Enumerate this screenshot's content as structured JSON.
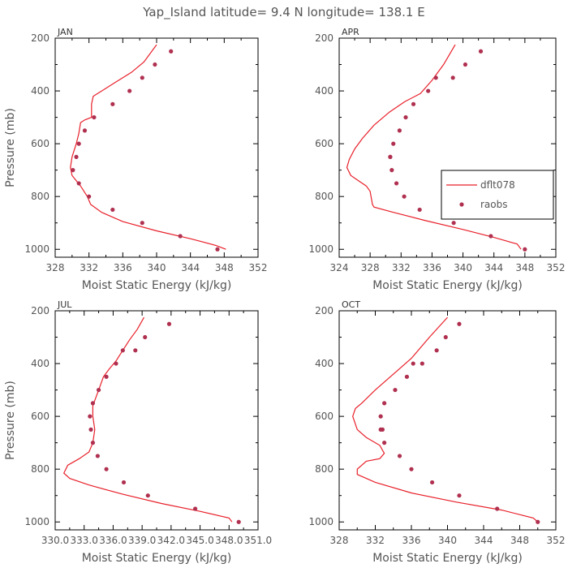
{
  "title": "Yap_Island  latitude= 9.4 N longitude= 138.1 E",
  "colors": {
    "model": "#e8202a",
    "obs": "#b03050",
    "frame": "#000000",
    "text": "#555555"
  },
  "legend": {
    "model_label": "dflt078",
    "obs_label": "raobs"
  },
  "chart_data": [
    {
      "type": "line",
      "panel": "JAN",
      "xlabel": "Moist Static Energy (kJ/kg)",
      "ylabel": "Pressure (mb)",
      "xlim": [
        328,
        352
      ],
      "ylim": [
        1030,
        200
      ],
      "xticks": [
        328,
        332,
        336,
        340,
        344,
        348,
        352
      ],
      "xticklabels": [
        "328",
        "332",
        "336",
        "340",
        "344",
        "348",
        "352"
      ],
      "yticks": [
        200,
        400,
        600,
        800,
        1000
      ],
      "yticklabels": [
        "200",
        "400",
        "600",
        "800",
        "1000"
      ],
      "model": {
        "x": [
          348.2,
          347.0,
          344.0,
          340.0,
          336.0,
          333.5,
          332.2,
          331.8,
          331.0,
          330.0,
          329.8,
          330.0,
          330.5,
          330.8,
          331.0,
          331.5,
          332.3,
          332.3,
          332.5,
          333.5,
          335.0,
          337.0,
          338.5,
          340.0
        ],
        "y": [
          1000,
          985,
          960,
          930,
          895,
          860,
          830,
          800,
          760,
          720,
          690,
          650,
          600,
          560,
          520,
          510,
          500,
          450,
          420,
          400,
          370,
          330,
          290,
          225
        ]
      },
      "obs": {
        "x": [
          347.2,
          342.8,
          338.3,
          334.8,
          332.0,
          330.8,
          330.1,
          330.5,
          330.8,
          331.5,
          332.6,
          334.8,
          336.8,
          338.3,
          339.8,
          341.7
        ],
        "y": [
          1000,
          950,
          900,
          850,
          800,
          750,
          700,
          650,
          600,
          550,
          500,
          450,
          400,
          350,
          300,
          250
        ]
      }
    },
    {
      "type": "line",
      "panel": "APR",
      "xlabel": "Moist Static Energy (kJ/kg)",
      "ylabel": "",
      "xlim": [
        324,
        352
      ],
      "ylim": [
        1030,
        200
      ],
      "xticks": [
        324,
        328,
        332,
        336,
        340,
        344,
        348,
        352
      ],
      "xticklabels": [
        "324",
        "328",
        "332",
        "336",
        "340",
        "344",
        "348",
        "352"
      ],
      "yticks": [
        200,
        400,
        600,
        800,
        1000
      ],
      "yticklabels": [
        "200",
        "400",
        "600",
        "800",
        "1000"
      ],
      "show_legend": true,
      "model": {
        "x": [
          347.5,
          347.0,
          344.0,
          340.0,
          335.0,
          331.0,
          328.5,
          328.3,
          328.0,
          327.5,
          326.5,
          325.5,
          325.0,
          325.3,
          326.0,
          327.0,
          328.5,
          330.5,
          332.5,
          334.5,
          336.0,
          337.5,
          339.0
        ],
        "y": [
          1000,
          980,
          955,
          925,
          890,
          860,
          840,
          830,
          780,
          760,
          740,
          720,
          690,
          660,
          620,
          580,
          530,
          480,
          440,
          410,
          360,
          300,
          225
        ]
      },
      "obs": {
        "x": [
          348.0,
          343.6,
          338.8,
          334.4,
          332.4,
          331.4,
          330.8,
          330.6,
          330.6,
          331.0,
          331.8,
          332.6,
          333.6,
          335.5,
          336.5,
          338.7,
          340.3,
          342.3
        ],
        "y": [
          1000,
          950,
          900,
          850,
          800,
          750,
          700,
          650,
          650,
          600,
          550,
          500,
          450,
          400,
          350,
          350,
          300,
          250
        ]
      }
    },
    {
      "type": "line",
      "panel": "JUL",
      "xlabel": "Moist Static Energy (kJ/kg)",
      "ylabel": "Pressure (mb)",
      "xlim": [
        330.0,
        351.0
      ],
      "ylim": [
        1030,
        200
      ],
      "xticks": [
        330.0,
        333.0,
        336.0,
        339.0,
        342.0,
        345.0,
        348.0,
        351.0
      ],
      "xticklabels": [
        "330.0",
        "333.0",
        "336.0",
        "339.0",
        "342.0",
        "345.0",
        "348.0",
        "351.0"
      ],
      "yticks": [
        200,
        400,
        600,
        800,
        1000
      ],
      "yticklabels": [
        "200",
        "400",
        "600",
        "800",
        "1000"
      ],
      "model": {
        "x": [
          348.3,
          348.0,
          345.0,
          341.0,
          337.0,
          333.5,
          331.5,
          330.9,
          331.3,
          332.5,
          333.5,
          333.9,
          334.1,
          333.9,
          333.9,
          334.2,
          334.6,
          335.0,
          335.6,
          336.3,
          337.0,
          337.7,
          338.5,
          339.2
        ],
        "y": [
          1000,
          985,
          960,
          930,
          895,
          860,
          835,
          815,
          785,
          760,
          735,
          700,
          650,
          600,
          560,
          530,
          490,
          450,
          420,
          390,
          350,
          310,
          270,
          225
        ]
      },
      "obs": {
        "x": [
          349.0,
          344.5,
          339.6,
          337.1,
          335.3,
          334.4,
          333.9,
          333.7,
          333.6,
          333.9,
          334.5,
          335.3,
          336.3,
          337.0,
          338.3,
          339.3,
          341.8
        ],
        "y": [
          1000,
          950,
          900,
          850,
          800,
          750,
          700,
          650,
          600,
          550,
          500,
          450,
          400,
          350,
          350,
          300,
          250
        ]
      }
    },
    {
      "type": "line",
      "panel": "OCT",
      "xlabel": "Moist Static Energy (kJ/kg)",
      "ylabel": "",
      "xlim": [
        328,
        352
      ],
      "ylim": [
        1030,
        200
      ],
      "xticks": [
        328,
        332,
        336,
        340,
        344,
        348,
        352
      ],
      "xticklabels": [
        "328",
        "332",
        "336",
        "340",
        "344",
        "348",
        "352"
      ],
      "yticks": [
        200,
        400,
        600,
        800,
        1000
      ],
      "yticklabels": [
        "200",
        "400",
        "600",
        "800",
        "1000"
      ],
      "model": {
        "x": [
          350.0,
          349.5,
          346.0,
          341.0,
          336.0,
          332.0,
          330.0,
          330.0,
          331.0,
          332.5,
          333.0,
          332.5,
          331.0,
          330.0,
          329.5,
          329.8,
          330.5,
          332.0,
          334.0,
          336.0,
          338.0,
          340.0
        ],
        "y": [
          1000,
          985,
          955,
          925,
          890,
          850,
          820,
          800,
          770,
          760,
          740,
          710,
          680,
          650,
          600,
          570,
          550,
          500,
          440,
          380,
          300,
          225
        ]
      },
      "obs": {
        "x": [
          350.0,
          345.5,
          341.3,
          338.3,
          336.0,
          334.7,
          333.0,
          332.8,
          332.6,
          332.6,
          333.0,
          334.2,
          335.5,
          336.2,
          337.2,
          338.8,
          339.8,
          341.3
        ],
        "y": [
          1000,
          950,
          900,
          850,
          800,
          750,
          700,
          650,
          650,
          600,
          550,
          500,
          450,
          400,
          400,
          350,
          300,
          250
        ]
      }
    }
  ]
}
